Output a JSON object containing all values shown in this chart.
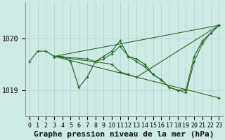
{
  "series": [
    {
      "x": [
        0,
        1,
        2,
        3,
        4,
        5,
        6,
        7,
        8,
        9,
        10,
        11,
        12,
        13,
        14,
        15,
        16,
        17,
        18,
        19,
        20,
        21,
        22,
        23
      ],
      "y": [
        1019.55,
        1019.75,
        1019.75,
        1019.65,
        1019.65,
        1019.55,
        1019.05,
        1019.25,
        1019.55,
        1019.65,
        1019.75,
        1019.95,
        1019.65,
        1019.6,
        1019.5,
        1019.3,
        1019.2,
        1019.05,
        1019.0,
        1019.0,
        1019.65,
        1019.95,
        1020.1,
        1020.25
      ]
    },
    {
      "x": [
        3,
        7,
        8,
        9,
        10,
        11,
        12,
        13,
        14,
        15,
        16,
        17,
        18,
        19,
        20,
        21,
        22,
        23
      ],
      "y": [
        1019.65,
        1019.6,
        1019.55,
        1019.6,
        1019.7,
        1019.85,
        1019.65,
        1019.55,
        1019.45,
        1019.3,
        1019.2,
        1019.05,
        1019.0,
        1018.95,
        1019.55,
        1019.9,
        1020.1,
        1020.25
      ]
    },
    {
      "x": [
        3,
        23
      ],
      "y": [
        1019.65,
        1020.25
      ]
    },
    {
      "x": [
        3,
        10,
        11,
        12,
        13,
        23
      ],
      "y": [
        1019.65,
        1019.5,
        1019.35,
        1019.3,
        1019.25,
        1020.25
      ]
    },
    {
      "x": [
        3,
        23
      ],
      "y": [
        1019.65,
        1018.85
      ]
    }
  ],
  "line_color": "#2d6a2d",
  "marker_color": "#2d6a2d",
  "bg_color": "#ceeae4",
  "grid_color": "#aad4cc",
  "title": "Graphe pression niveau de la mer (hPa)",
  "ylabel_ticks": [
    1019,
    1020
  ],
  "ylim": [
    1018.5,
    1020.7
  ],
  "xlim": [
    -0.5,
    23.5
  ],
  "title_fontsize": 8,
  "tick_fontsize": 6
}
